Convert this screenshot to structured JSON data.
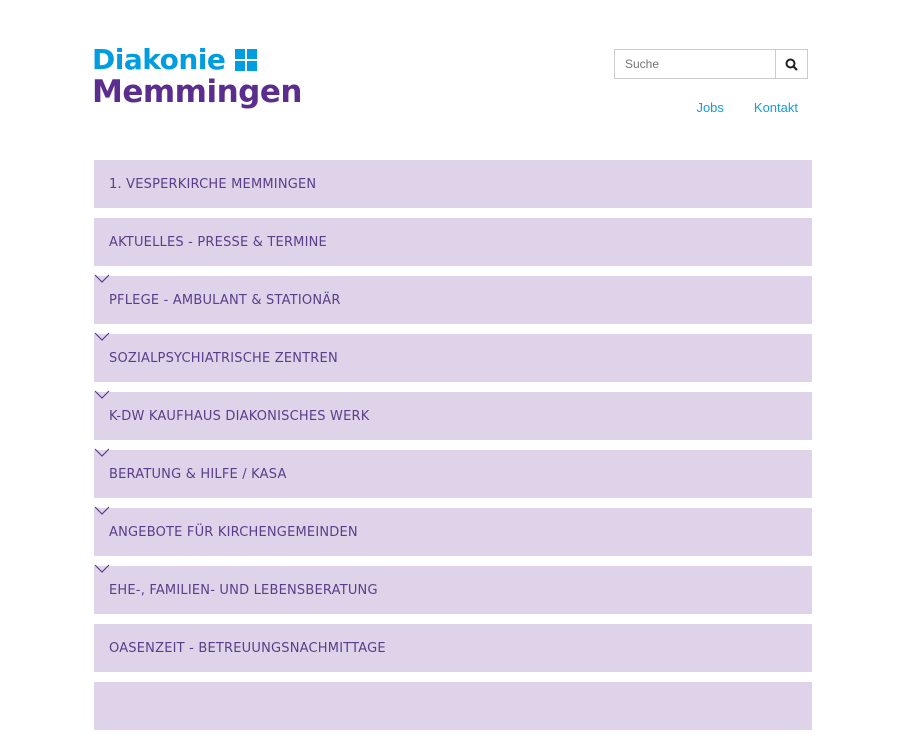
{
  "logo": {
    "line1": "Diakonie",
    "line2": "Memmingen",
    "colors": {
      "blue": "#009ee0",
      "purple": "#5b2d8e"
    }
  },
  "search": {
    "placeholder": "Suche",
    "icon": "search-icon"
  },
  "nav": [
    {
      "label": "Jobs"
    },
    {
      "label": "Kontakt"
    }
  ],
  "menu": [
    {
      "label": "1. VESPERKIRCHE MEMMINGEN",
      "expandable": false
    },
    {
      "label": "AKTUELLES - PRESSE & TERMINE",
      "expandable": false
    },
    {
      "label": "PFLEGE - AMBULANT & STATIONÄR",
      "expandable": true
    },
    {
      "label": "SOZIALPSYCHIATRISCHE ZENTREN",
      "expandable": true
    },
    {
      "label": "K-DW KAUFHAUS DIAKONISCHES WERK",
      "expandable": true
    },
    {
      "label": "BERATUNG & HILFE / KASA",
      "expandable": true
    },
    {
      "label": "ANGEBOTE FÜR KIRCHENGEMEINDEN",
      "expandable": true
    },
    {
      "label": "EHE-, FAMILIEN- UND LEBENSBERATUNG",
      "expandable": true
    },
    {
      "label": "OASENZEIT - BETREUUNGSNACHMITTAGE",
      "expandable": false
    },
    {
      "label": "",
      "expandable": false
    }
  ]
}
